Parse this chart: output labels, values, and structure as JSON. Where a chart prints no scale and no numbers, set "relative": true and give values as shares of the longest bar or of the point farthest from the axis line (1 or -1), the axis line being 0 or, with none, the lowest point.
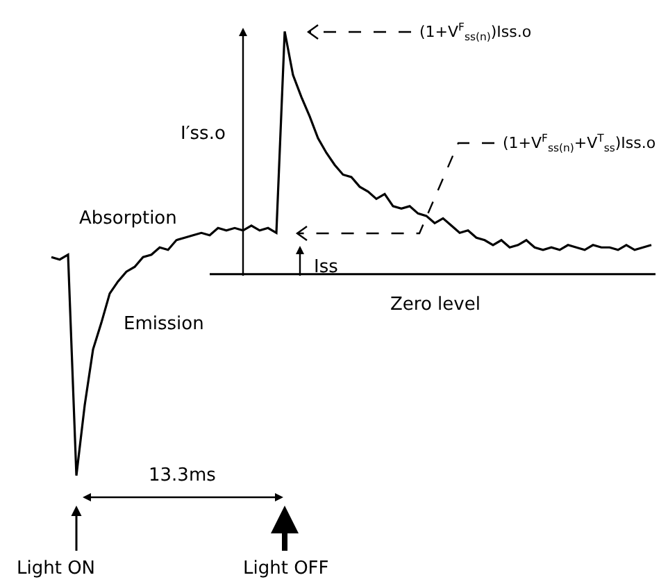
{
  "chart_data": {
    "type": "line",
    "relative": true,
    "categories": [
      null,
      null,
      null,
      null,
      null,
      null,
      null,
      null,
      null,
      null,
      null,
      null,
      null,
      null,
      null,
      null,
      null,
      null,
      null,
      null,
      null,
      null,
      null,
      null,
      null,
      null,
      null,
      null,
      null,
      null,
      null,
      null,
      null,
      null,
      null,
      null,
      null,
      null,
      null,
      null,
      null,
      null,
      null,
      null,
      null,
      null,
      null,
      null,
      null,
      null,
      null,
      null,
      null,
      null,
      null,
      null,
      null,
      null,
      null,
      null,
      null,
      null,
      null,
      null,
      null,
      null,
      null,
      null,
      null,
      null,
      null,
      null,
      null
    ],
    "series": [
      {
        "color": "#000000",
        "values": [
          0.07,
          0.06,
          0.08,
          -0.83,
          -0.54,
          -0.31,
          -0.2,
          -0.08,
          -0.03,
          0.01,
          0.03,
          0.07,
          0.08,
          0.11,
          0.1,
          0.14,
          0.15,
          0.16,
          0.17,
          0.16,
          0.19,
          0.18,
          0.19,
          0.18,
          0.2,
          0.18,
          0.19,
          0.17,
          1.0,
          0.82,
          0.73,
          0.65,
          0.56,
          0.5,
          0.45,
          0.41,
          0.4,
          0.36,
          0.34,
          0.31,
          0.33,
          0.28,
          0.27,
          0.28,
          0.25,
          0.24,
          0.21,
          0.23,
          0.2,
          0.17,
          0.18,
          0.15,
          0.14,
          0.12,
          0.14,
          0.11,
          0.12,
          0.14,
          0.11,
          0.1,
          0.11,
          0.1,
          0.12,
          0.11,
          0.1,
          0.12,
          0.11,
          0.11,
          0.1,
          0.12,
          0.1,
          0.11,
          0.12
        ]
      }
    ],
    "ref_lines": [
      {
        "axis": "y",
        "value": 0,
        "label": "Zero level"
      }
    ],
    "annotations": [
      "Absorption",
      "Emission",
      "I′ss.o",
      "Iss",
      "(1+V$^{F}$$_{ss(n)}$)Iss.o",
      "(1+V$^{F}$$_{ss(n)}$+V$^{T}$$_{ss}$)Iss.o",
      "13.3ms",
      "Light ON",
      "Light OFF"
    ],
    "marker": "none",
    "line_style": "solid",
    "tick_labels": false
  }
}
